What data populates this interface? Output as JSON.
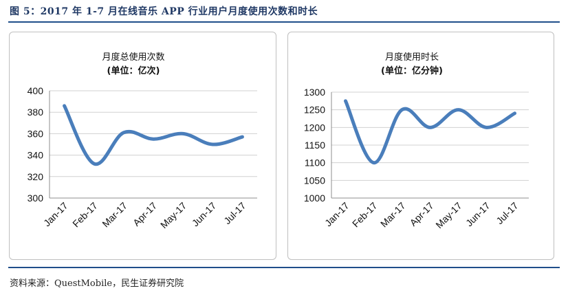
{
  "figure": {
    "title": "图 5：2017 年 1-7 月在线音乐 APP 行业用户月度使用次数和时长",
    "source": "资料来源：QuestMobile，民生证券研究院"
  },
  "colors": {
    "series": "#4a7ebb",
    "rule": "#1f4e8a",
    "title": "#1f3864"
  },
  "chart_data": [
    {
      "type": "line",
      "smooth": true,
      "title": "月度总使用次数",
      "subtitle": "(单位：亿次)",
      "categories": [
        "Jan-17",
        "Feb-17",
        "Mar-17",
        "Apr-17",
        "May-17",
        "Jun-17",
        "Jul-17"
      ],
      "series": [
        {
          "values": [
            386,
            332,
            361,
            355,
            360,
            350,
            357
          ]
        }
      ],
      "ylim": [
        300,
        400
      ],
      "yticks": [
        300,
        320,
        340,
        360,
        380,
        400
      ],
      "grid": true,
      "legend": "none"
    },
    {
      "type": "line",
      "smooth": true,
      "title": "月度使用时长",
      "subtitle": "(单位：亿分钟)",
      "categories": [
        "Jan-17",
        "Feb-17",
        "Mar-17",
        "Apr-17",
        "May-17",
        "Jun-17",
        "Jul-17"
      ],
      "series": [
        {
          "values": [
            1275,
            1100,
            1250,
            1200,
            1250,
            1200,
            1240
          ]
        }
      ],
      "ylim": [
        1000,
        1300
      ],
      "yticks": [
        1000,
        1050,
        1100,
        1150,
        1200,
        1250,
        1300
      ],
      "grid": true,
      "legend": "none"
    }
  ]
}
